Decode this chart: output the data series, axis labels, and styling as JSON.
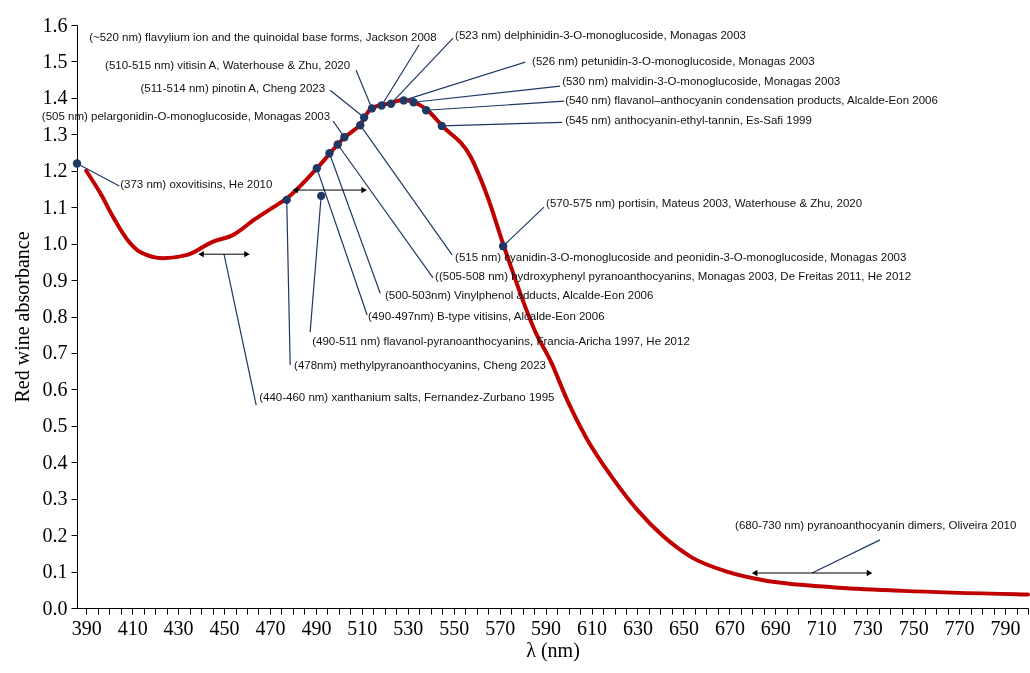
{
  "chart_data": {
    "type": "line",
    "xlabel": "λ (nm)",
    "ylabel": "Red wine absorbance",
    "xlim": [
      386,
      800
    ],
    "ylim": [
      0,
      1.6
    ],
    "xticks": [
      390,
      {
        "value": 395,
        "label": null
      },
      {
        "value": 400,
        "label": null
      },
      {
        "value": 405,
        "label": null
      },
      410,
      {
        "value": 415,
        "label": null
      },
      {
        "value": 420,
        "label": null
      },
      {
        "value": 425,
        "label": null
      },
      430,
      {
        "value": 435,
        "label": null
      },
      {
        "value": 440,
        "label": null
      },
      {
        "value": 445,
        "label": null
      },
      450,
      {
        "value": 455,
        "label": null
      },
      {
        "value": 460,
        "label": null
      },
      {
        "value": 465,
        "label": null
      },
      470,
      {
        "value": 475,
        "label": null
      },
      {
        "value": 480,
        "label": null
      },
      {
        "value": 485,
        "label": null
      },
      490,
      {
        "value": 495,
        "label": null
      },
      {
        "value": 500,
        "label": null
      },
      {
        "value": 505,
        "label": null
      },
      510,
      {
        "value": 515,
        "label": null
      },
      {
        "value": 520,
        "label": null
      },
      {
        "value": 525,
        "label": null
      },
      530,
      {
        "value": 535,
        "label": null
      },
      {
        "value": 540,
        "label": null
      },
      {
        "value": 545,
        "label": null
      },
      550,
      {
        "value": 555,
        "label": null
      },
      {
        "value": 560,
        "label": null
      },
      {
        "value": 565,
        "label": null
      },
      570,
      {
        "value": 575,
        "label": null
      },
      {
        "value": 580,
        "label": null
      },
      {
        "value": 585,
        "label": null
      },
      590,
      {
        "value": 595,
        "label": null
      },
      {
        "value": 600,
        "label": null
      },
      {
        "value": 605,
        "label": null
      },
      610,
      {
        "value": 615,
        "label": null
      },
      {
        "value": 620,
        "label": null
      },
      {
        "value": 625,
        "label": null
      },
      630,
      {
        "value": 635,
        "label": null
      },
      {
        "value": 640,
        "label": null
      },
      {
        "value": 645,
        "label": null
      },
      650,
      {
        "value": 655,
        "label": null
      },
      {
        "value": 660,
        "label": null
      },
      {
        "value": 665,
        "label": null
      },
      670,
      {
        "value": 675,
        "label": null
      },
      {
        "value": 680,
        "label": null
      },
      {
        "value": 685,
        "label": null
      },
      690,
      {
        "value": 695,
        "label": null
      },
      {
        "value": 700,
        "label": null
      },
      {
        "value": 705,
        "label": null
      },
      710,
      {
        "value": 715,
        "label": null
      },
      {
        "value": 720,
        "label": null
      },
      {
        "value": 725,
        "label": null
      },
      730,
      {
        "value": 735,
        "label": null
      },
      {
        "value": 740,
        "label": null
      },
      {
        "value": 745,
        "label": null
      },
      750,
      {
        "value": 755,
        "label": null
      },
      {
        "value": 760,
        "label": null
      },
      {
        "value": 765,
        "label": null
      },
      770,
      {
        "value": 775,
        "label": null
      },
      {
        "value": 780,
        "label": null
      },
      {
        "value": 785,
        "label": null
      },
      790,
      {
        "value": 795,
        "label": null
      },
      {
        "value": 800,
        "label": null
      }
    ],
    "yticks": [
      {
        "value": 0,
        "label": "0.0"
      },
      {
        "value": 0.1,
        "label": "0.1"
      },
      {
        "value": 0.2,
        "label": "0.2"
      },
      {
        "value": 0.3,
        "label": "0.3"
      },
      {
        "value": 0.4,
        "label": "0.4"
      },
      {
        "value": 0.5,
        "label": "0.5"
      },
      {
        "value": 0.6,
        "label": "0.6"
      },
      {
        "value": 0.7,
        "label": "0.7"
      },
      {
        "value": 0.8,
        "label": "0.8"
      },
      {
        "value": 0.9,
        "label": "0.9"
      },
      {
        "value": 1,
        "label": "1.0"
      },
      {
        "value": 1.1,
        "label": "1.1"
      },
      {
        "value": 1.2,
        "label": "1.2"
      },
      {
        "value": 1.3,
        "label": "1.3"
      },
      {
        "value": 1.4,
        "label": "1.4"
      },
      {
        "value": 1.5,
        "label": "1.5"
      },
      {
        "value": 1.6,
        "label": "1.6"
      }
    ],
    "series": [
      {
        "type": "line",
        "color": "#c00000",
        "marker": "none",
        "line_style": "solid",
        "x": [
          390,
          396,
          402,
          408,
          413.5,
          423.5,
          434,
          445,
          454,
          463,
          471.5,
          477.5,
          490.5,
          502.7,
          509,
          514.3,
          522,
          528,
          532.4,
          538.4,
          545,
          557.3,
          564.4,
          572,
          585.9,
          592,
          599.8,
          607.6,
          619.8,
          630.5,
          641,
          653.6,
          668.9,
          684.2,
          715,
          745.6,
          800
        ],
        "values": [
          1.2,
          1.14,
          1.07,
          1.01,
          0.977,
          0.96,
          0.969,
          1.005,
          1.024,
          1.065,
          1.1,
          1.125,
          1.207,
          1.293,
          1.325,
          1.372,
          1.385,
          1.394,
          1.389,
          1.367,
          1.323,
          1.239,
          1.134,
          0.99,
          0.753,
          0.68,
          0.565,
          0.468,
          0.351,
          0.265,
          0.198,
          0.139,
          0.1,
          0.077,
          0.057,
          0.047,
          0.037
        ]
      },
      {
        "type": "scatter",
        "color": "#1f3864",
        "marker": "circle",
        "x": [
          386,
          477.3,
          492.3,
          490.4,
          495.9,
          499.5,
          502.4,
          509.3,
          511,
          514.4,
          518.6,
          522.7,
          528.2,
          532.5,
          538,
          544.8,
          571.5
        ],
        "values": [
          1.22,
          1.12,
          1.131,
          1.207,
          1.248,
          1.272,
          1.292,
          1.325,
          1.346,
          1.371,
          1.379,
          1.384,
          1.393,
          1.388,
          1.366,
          1.323,
          0.993
        ]
      }
    ],
    "annotations": [
      {
        "text": "(~520 nm) flavylium ion and the quinoidal base forms, Jackson 2008",
        "x": 518.6,
        "y": 1.379
      },
      {
        "text": "(510-515 nm) vitisin A, Waterhouse & Zhu, 2020",
        "x": 514.4,
        "y": 1.371
      },
      {
        "text": "(511-514 nm) pinotin A, Cheng 2023",
        "x": 511,
        "y": 1.346
      },
      {
        "text": "(505 nm) pelargonidin-O-monoglucoside, Monagas 2003",
        "x": 502.4,
        "y": 1.292
      },
      {
        "text": "(373 nm) oxovitisins, He 2010",
        "x": 386,
        "y": 1.22
      },
      {
        "text": "(515 nm) cyanidin-3-O-monoglucoside and peonidin-3-O-monoglucoside, Monagas 2003",
        "x": 509.3,
        "y": 1.325
      },
      {
        "text": "((505-508 nm) hydroxyphenyl pyranoanthocyanins, Monagas 2003, De  Freitas 2011, He 2012",
        "x": 499.5,
        "y": 1.272
      },
      {
        "text": "(500-503nm) Vinylphenol adducts, Alcalde-Eon 2006",
        "x": 495.9,
        "y": 1.248
      },
      {
        "text": "(490-497nm) B-type vitisins, Alcalde-Eon 2006",
        "x": 490.4,
        "y": 1.207
      },
      {
        "text": "(490-511 nm) flavanol-pyranoanthocyanins, Francia-Aricha 1997, He 2012",
        "x": 492.3,
        "y": 1.131
      },
      {
        "text": "(478nm) methylpyranoanthocyanins, Cheng 2023",
        "x": 477.3,
        "y": 1.12
      },
      "(440-460 nm) xanthanium salts, Fernandez-Zurbano 1995",
      {
        "text": "(523 nm) delphinidin-3-O-monoglucoside, Monagas 2003",
        "x": 522.7,
        "y": 1.384
      },
      {
        "text": "(526 nm) petunidin-3-O-monoglucoside, Monagas 2003",
        "x": 528.2,
        "y": 1.393
      },
      {
        "text": "(530 nm) malvidin-3-O-monoglucoside, Monagas 2003",
        "x": 532.5,
        "y": 1.388
      },
      {
        "text": "(540 nm) flavanol–anthocyanin condensation products, Alcalde-Eon 2006",
        "x": 538,
        "y": 1.366
      },
      {
        "text": "(545 nm) anthocyanin-ethyl-tannin, Es-Safi 1999",
        "x": 544.8,
        "y": 1.323
      },
      {
        "text": "(570-575 nm) portisin, Mateus 2003, Waterhouse & Zhu, 2020",
        "x": 571.5,
        "y": 0.993
      },
      "(680-730 nm) pyranoanthocyanin dimers, Oliveira 2010"
    ]
  }
}
